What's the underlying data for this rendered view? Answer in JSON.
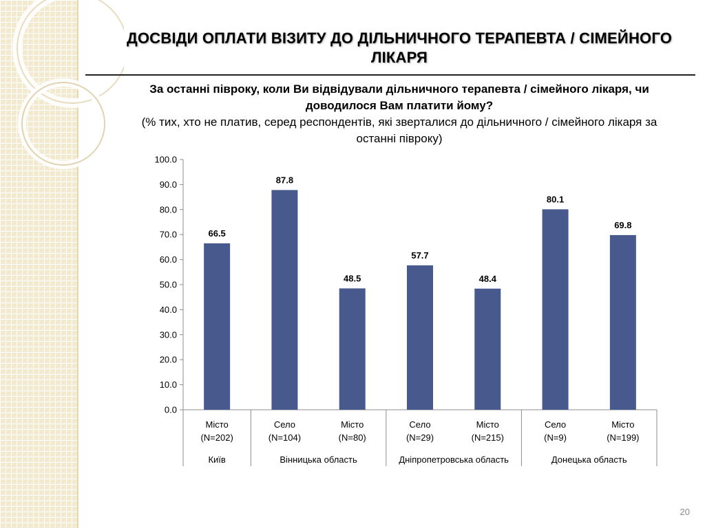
{
  "slide": {
    "title": "ДОСВІДИ ОПЛАТИ ВІЗИТУ ДО ДІЛЬНИЧНОГО ТЕРАПЕВТА / СІМЕЙНОГО ЛІКАРЯ",
    "question": "За останні півроку, коли Ви відвідували дільничного терапевта / сімейного лікаря, чи доводилося Вам платити йому?",
    "note": "(% тих, хто не платив, серед респондентів, які зверталися до дільничного / сімейного лікаря за останні півроку)",
    "page_number": "20"
  },
  "chart_data": {
    "type": "bar",
    "ylim": [
      0,
      100
    ],
    "yticks": [
      "0.0",
      "10.0",
      "20.0",
      "30.0",
      "40.0",
      "50.0",
      "60.0",
      "70.0",
      "80.0",
      "90.0",
      "100.0"
    ],
    "categories": [
      {
        "label": "Місто",
        "n": "(N=202)"
      },
      {
        "label": "Село",
        "n": "(N=104)"
      },
      {
        "label": "Місто",
        "n": "(N=80)"
      },
      {
        "label": "Село",
        "n": "(N=29)"
      },
      {
        "label": "Місто",
        "n": "(N=215)"
      },
      {
        "label": "Село",
        "n": "(N=9)"
      },
      {
        "label": "Місто",
        "n": "(N=199)"
      }
    ],
    "groups": [
      {
        "label": "Київ",
        "count": 1
      },
      {
        "label": "Вінницька область",
        "count": 2
      },
      {
        "label": "Дніпропетровська область",
        "count": 2
      },
      {
        "label": "Донецька область",
        "count": 2
      }
    ],
    "values": [
      66.5,
      87.8,
      48.5,
      57.7,
      48.4,
      80.1,
      69.8
    ],
    "value_labels": [
      "66.5",
      "87.8",
      "48.5",
      "57.7",
      "48.4",
      "80.1",
      "69.8"
    ],
    "bar_color": "#47598d",
    "grid": false,
    "legend": "none"
  }
}
